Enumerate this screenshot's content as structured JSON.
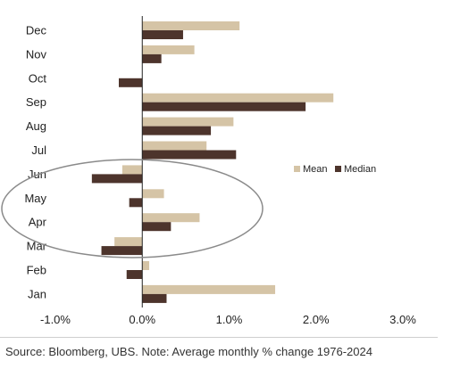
{
  "chart_data": {
    "type": "bar",
    "orientation": "horizontal",
    "categories": [
      "Dec",
      "Nov",
      "Oct",
      "Sep",
      "Aug",
      "Jul",
      "Jun",
      "May",
      "Apr",
      "Mar",
      "Feb",
      "Jan"
    ],
    "series": [
      {
        "name": "Mean",
        "color": "#d5c4a6",
        "values": [
          1.12,
          0.6,
          0.0,
          2.2,
          1.05,
          0.74,
          -0.23,
          0.25,
          0.66,
          -0.32,
          0.08,
          1.53
        ]
      },
      {
        "name": "Median",
        "color": "#4d342c",
        "values": [
          0.47,
          0.22,
          -0.27,
          1.88,
          0.79,
          1.08,
          -0.58,
          -0.15,
          0.33,
          -0.47,
          -0.18,
          0.28
        ]
      }
    ],
    "x_ticks": [
      "-1.0%",
      "0.0%",
      "1.0%",
      "2.0%",
      "3.0%"
    ],
    "xlim": [
      -1.0,
      3.0
    ],
    "grid": false,
    "legend_position": "right-middle",
    "annotation": "ellipse highlighting Mar-Jun",
    "source": "Source: Bloomberg, UBS. Note: Average monthly % change 1976-2024"
  }
}
